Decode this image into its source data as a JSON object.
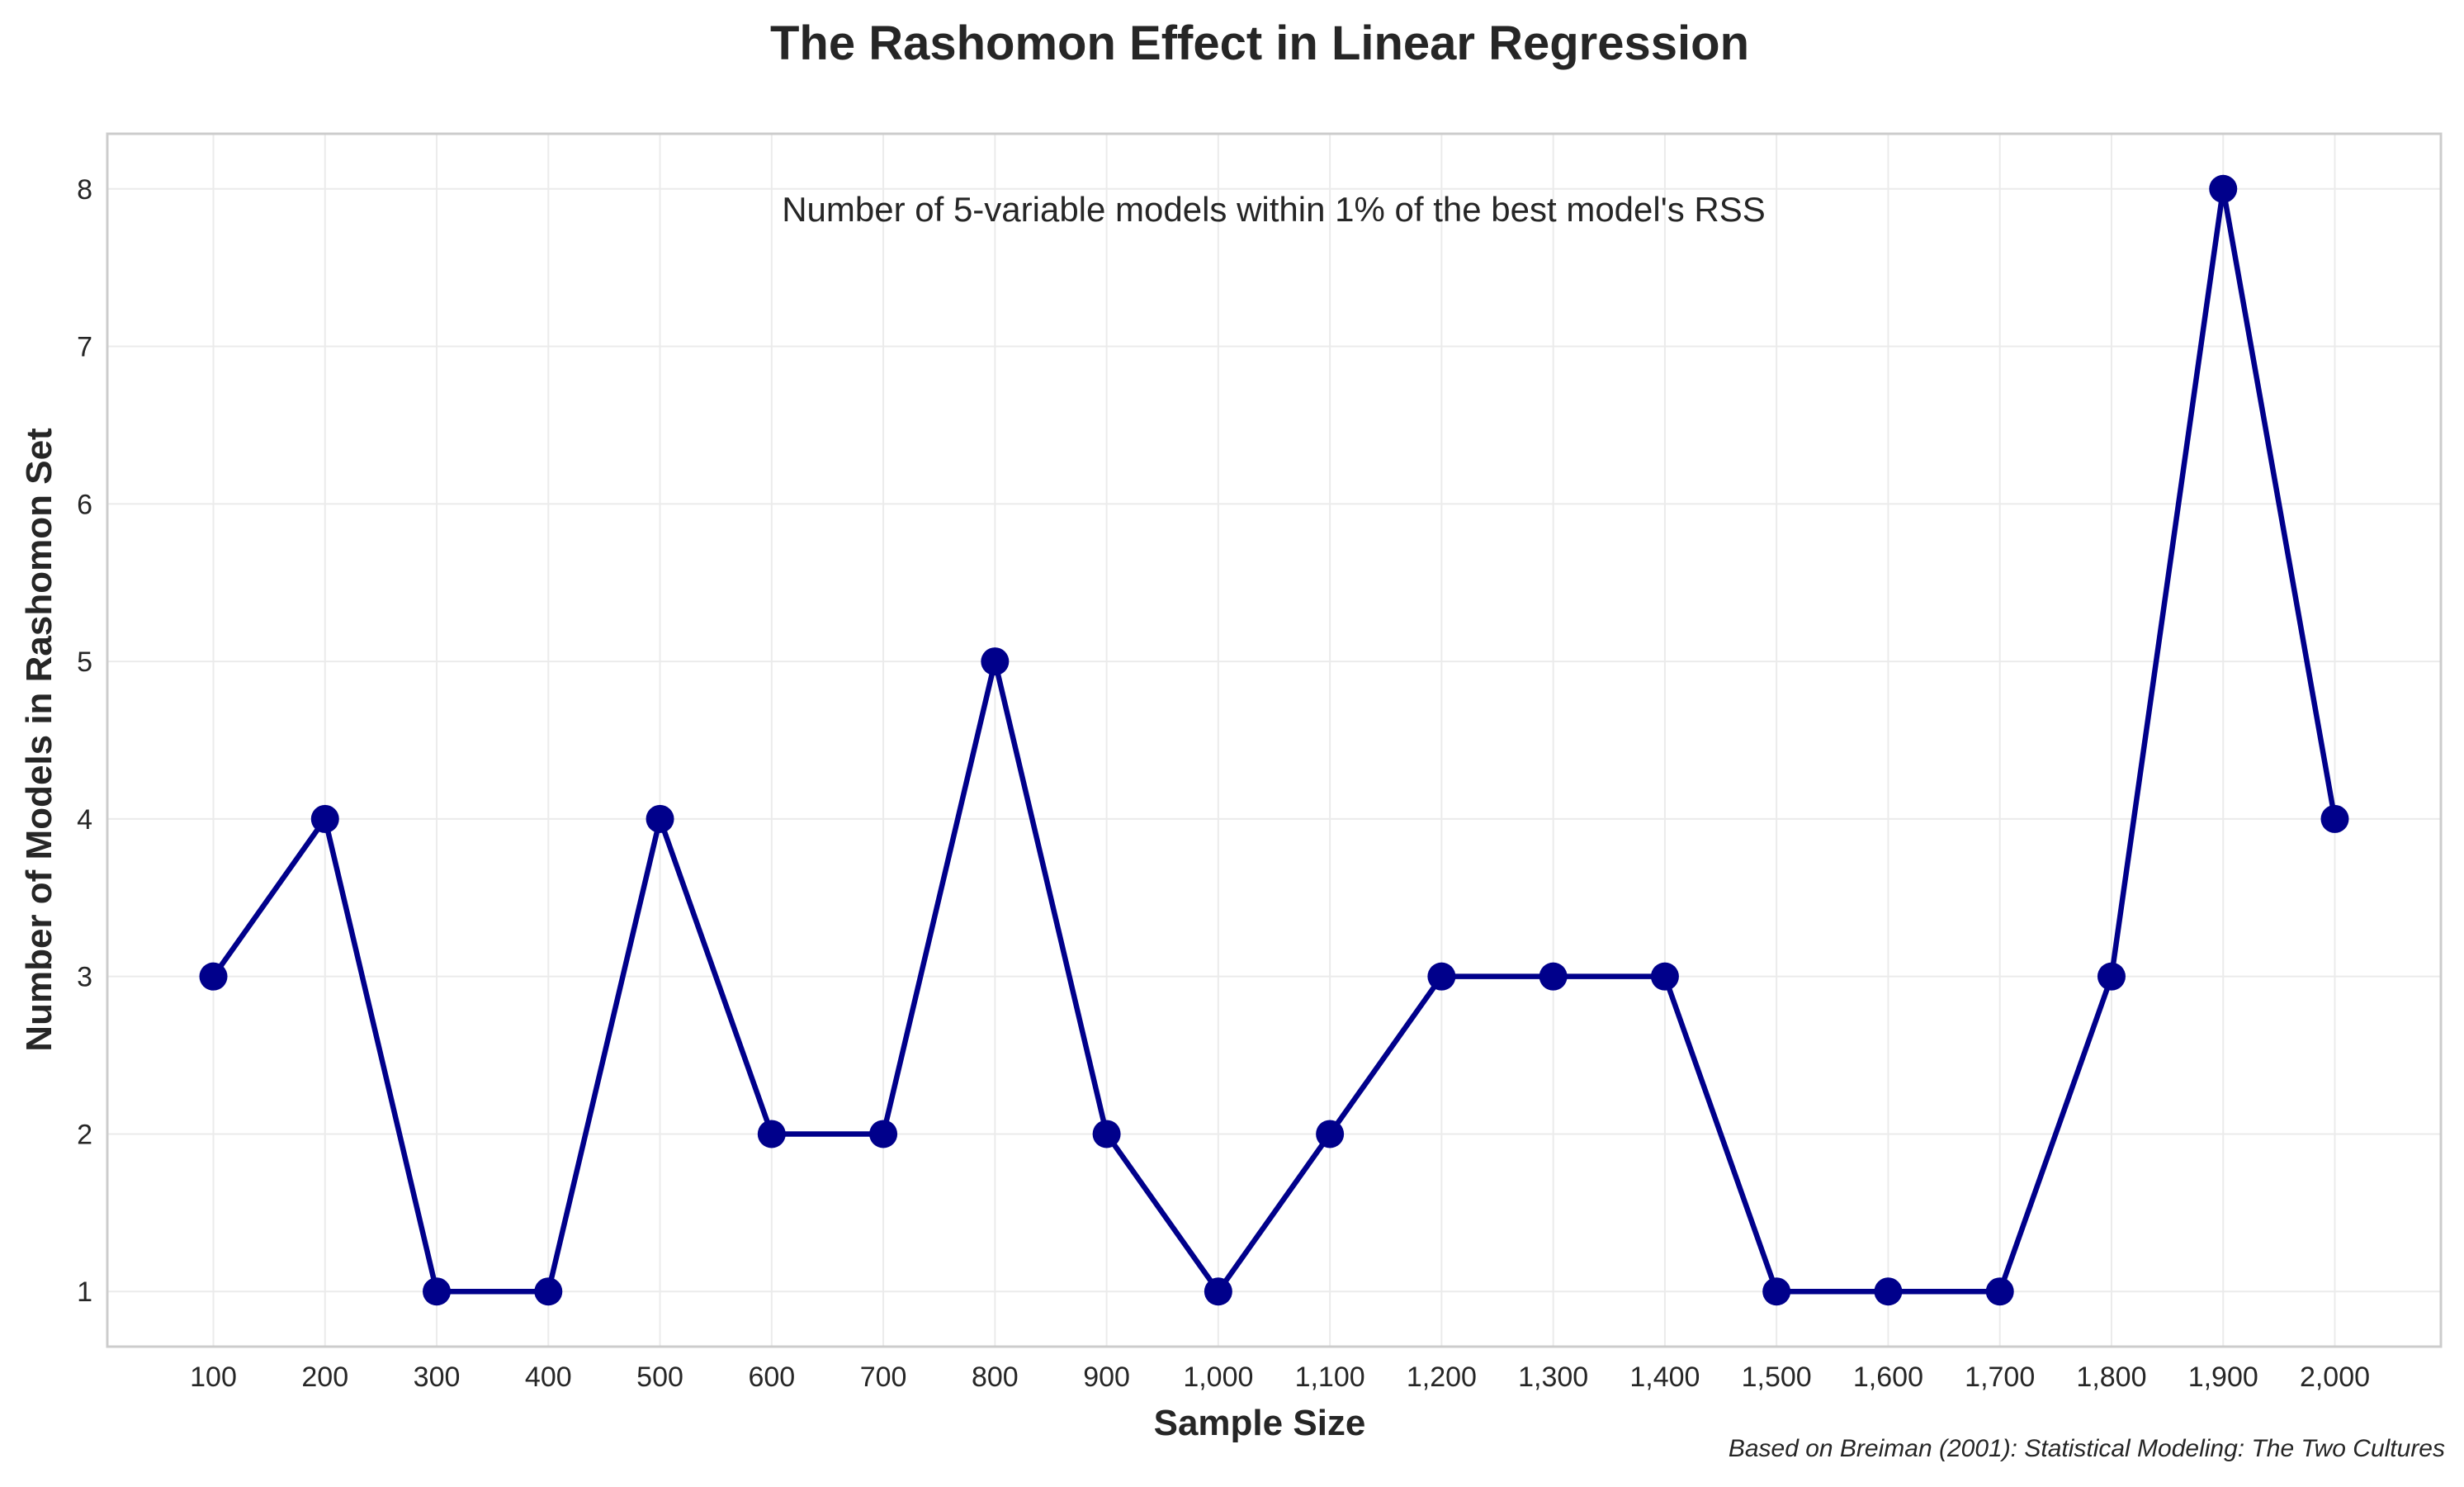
{
  "chart_data": {
    "type": "line",
    "title": "The Rashomon Effect in Linear Regression",
    "annotation": "Number of 5-variable models within 1% of the best model's RSS",
    "caption": "Based on Breiman (2001): Statistical Modeling: The Two Cultures",
    "xlabel": "Sample Size",
    "ylabel": "Number of Models in Rashomon Set",
    "x": [
      100,
      200,
      300,
      400,
      500,
      600,
      700,
      800,
      900,
      1000,
      1100,
      1200,
      1300,
      1400,
      1500,
      1600,
      1700,
      1800,
      1900,
      2000
    ],
    "x_tick_labels": [
      "100",
      "200",
      "300",
      "400",
      "500",
      "600",
      "700",
      "800",
      "900",
      "1,000",
      "1,100",
      "1,200",
      "1,300",
      "1,400",
      "1,500",
      "1,600",
      "1,700",
      "1,800",
      "1,900",
      "2,000"
    ],
    "y": [
      3,
      4,
      1,
      1,
      4,
      2,
      2,
      5,
      2,
      1,
      2,
      3,
      3,
      3,
      1,
      1,
      1,
      3,
      8,
      4
    ],
    "y_ticks": [
      1,
      2,
      3,
      4,
      5,
      6,
      7,
      8
    ],
    "xlim": [
      5,
      2095
    ],
    "ylim": [
      0.65,
      8.35
    ],
    "grid": true,
    "line_color": "#00008b",
    "marker": "circle"
  }
}
